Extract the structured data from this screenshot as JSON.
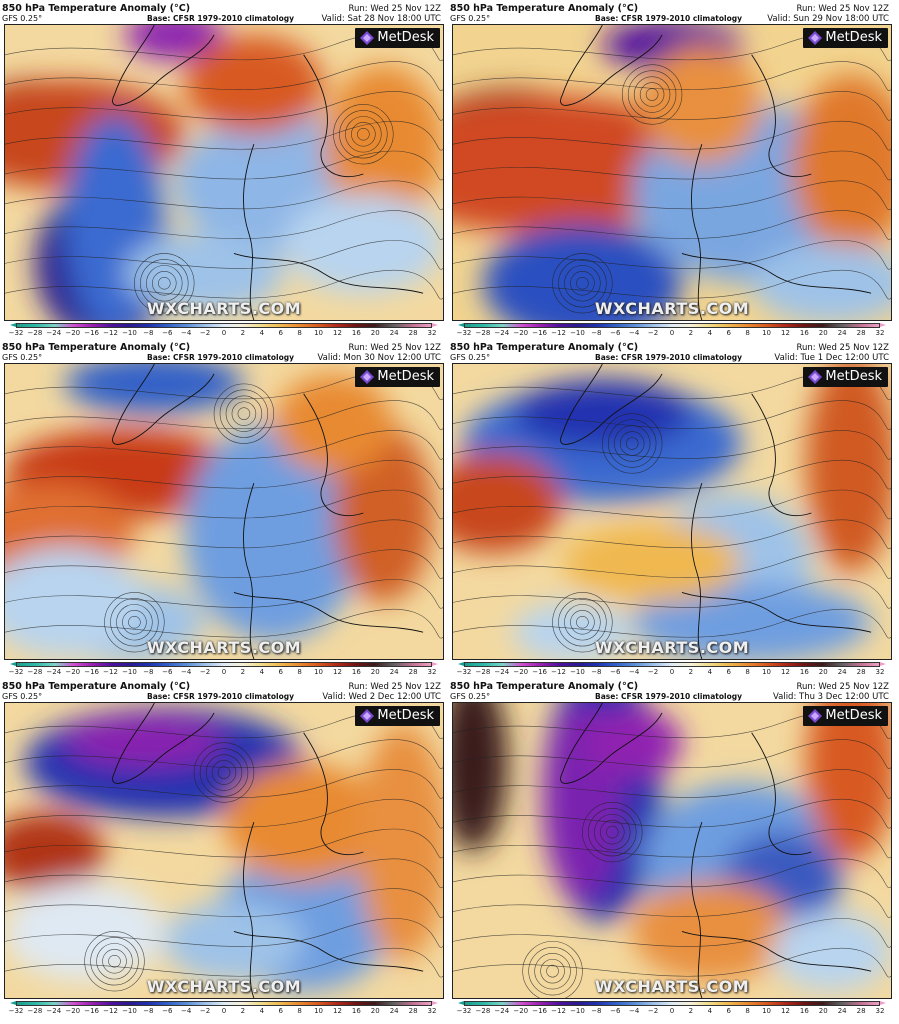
{
  "colorbar": {
    "ticks": [
      "−32",
      "−28",
      "−24",
      "−20",
      "−16",
      "−12",
      "−10",
      "−8",
      "−6",
      "−4",
      "−2",
      "0",
      "2",
      "4",
      "6",
      "8",
      "10",
      "12",
      "16",
      "20",
      "24",
      "28",
      "32"
    ],
    "gradient": [
      "#1a9e8f",
      "#2fb9a8",
      "#7fd3c8",
      "#d050d0",
      "#9a20b0",
      "#5010a0",
      "#2a1a90",
      "#2030b0",
      "#3060c8",
      "#5a8ed8",
      "#9ec2e8",
      "#e0ecf6",
      "#f6f0d8",
      "#f2dc8a",
      "#f0b850",
      "#e88a30",
      "#d85a20",
      "#b02818",
      "#701414",
      "#3c1a1a",
      "#606060",
      "#c07090",
      "#f0a0c8"
    ]
  },
  "panels": [
    {
      "title": "850 hPa Temperature Anomaly (°C)",
      "model": "GFS 0.25°",
      "base": "Base: CFSR 1979-2010 climatology",
      "run": "Run: Wed 25 Nov 12Z",
      "valid": "Valid: Sat 28 Nov 18:00 UTC",
      "logo": "MetDesk",
      "watermark": "WXCHARTS.COM"
    },
    {
      "title": "850 hPa Temperature Anomaly (°C)",
      "model": "GFS 0.25°",
      "base": "Base: CFSR 1979-2010 climatology",
      "run": "Run: Wed 25 Nov 12Z",
      "valid": "Valid: Sun 29 Nov 18:00 UTC",
      "logo": "MetDesk",
      "watermark": "WXCHARTS.COM"
    },
    {
      "title": "850 hPa Temperature Anomaly (°C)",
      "model": "GFS 0.25°",
      "base": "Base: CFSR 1979-2010 climatology",
      "run": "Run: Wed 25 Nov 12Z",
      "valid": "Valid: Mon 30 Nov 12:00 UTC",
      "logo": "MetDesk",
      "watermark": "WXCHARTS.COM"
    },
    {
      "title": "850 hPa Temperature Anomaly (°C)",
      "model": "GFS 0.25°",
      "base": "Base: CFSR 1979-2010 climatology",
      "run": "Run: Wed 25 Nov 12Z",
      "valid": "Valid: Tue 1 Dec 12:00 UTC",
      "logo": "MetDesk",
      "watermark": "WXCHARTS.COM"
    },
    {
      "title": "850 hPa Temperature Anomaly (°C)",
      "model": "GFS 0.25°",
      "base": "Base: CFSR 1979-2010 climatology",
      "run": "Run: Wed 25 Nov 12Z",
      "valid": "Valid: Wed 2 Dec 12:00 UTC",
      "logo": "MetDesk",
      "watermark": "WXCHARTS.COM"
    },
    {
      "title": "850 hPa Temperature Anomaly (°C)",
      "model": "GFS 0.25°",
      "base": "Base: CFSR 1979-2010 climatology",
      "run": "Run: Wed 25 Nov 12Z",
      "valid": "Valid: Thu 3 Dec 12:00 UTC",
      "logo": "MetDesk",
      "watermark": "WXCHARTS.COM"
    }
  ]
}
